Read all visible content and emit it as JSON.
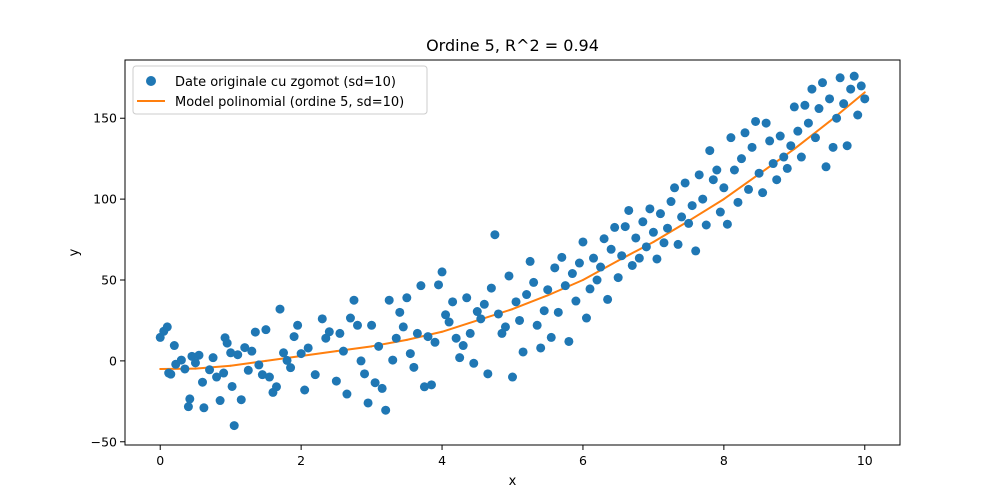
{
  "chart_data": {
    "type": "scatter",
    "title": "Ordine 5, R^2 = 0.94",
    "xlabel": "x",
    "ylabel": "y",
    "xlim": [
      -0.5,
      10.5
    ],
    "ylim": [
      -52,
      186
    ],
    "xticks": [
      0,
      2,
      4,
      6,
      8,
      10
    ],
    "yticks": [
      -50,
      0,
      50,
      100,
      150
    ],
    "grid": false,
    "legend_position": "top-left",
    "colors": {
      "scatter": "#1f77b4",
      "model": "#ff7f0e"
    },
    "series": [
      {
        "name": "Date originale cu zgomot (sd=10)",
        "kind": "scatter",
        "points": [
          [
            0.0,
            14.5
          ],
          [
            0.05,
            18.3
          ],
          [
            0.1,
            21.0
          ],
          [
            0.12,
            -7.5
          ],
          [
            0.15,
            -8.2
          ],
          [
            0.2,
            9.5
          ],
          [
            0.22,
            -2.1
          ],
          [
            0.3,
            0.5
          ],
          [
            0.35,
            -5.0
          ],
          [
            0.4,
            -28.3
          ],
          [
            0.42,
            -23.5
          ],
          [
            0.45,
            2.8
          ],
          [
            0.5,
            -1.2
          ],
          [
            0.55,
            3.5
          ],
          [
            0.6,
            -13.2
          ],
          [
            0.62,
            -29.0
          ],
          [
            0.7,
            -5.5
          ],
          [
            0.75,
            2.0
          ],
          [
            0.8,
            -10.0
          ],
          [
            0.85,
            -24.5
          ],
          [
            0.9,
            -7.5
          ],
          [
            0.92,
            14.3
          ],
          [
            0.95,
            11.0
          ],
          [
            1.0,
            5.0
          ],
          [
            1.02,
            -15.8
          ],
          [
            1.05,
            -40.0
          ],
          [
            1.1,
            3.8
          ],
          [
            1.15,
            -24.0
          ],
          [
            1.2,
            8.2
          ],
          [
            1.25,
            -5.8
          ],
          [
            1.3,
            6.0
          ],
          [
            1.35,
            17.8
          ],
          [
            1.4,
            -2.5
          ],
          [
            1.45,
            -8.5
          ],
          [
            1.5,
            19.3
          ],
          [
            1.55,
            -10.0
          ],
          [
            1.6,
            -19.5
          ],
          [
            1.65,
            -16.0
          ],
          [
            1.7,
            32.0
          ],
          [
            1.75,
            5.0
          ],
          [
            1.8,
            0.3
          ],
          [
            1.85,
            -4.2
          ],
          [
            1.9,
            15.0
          ],
          [
            1.95,
            22.0
          ],
          [
            2.0,
            4.5
          ],
          [
            2.05,
            -18.0
          ],
          [
            2.1,
            8.0
          ],
          [
            2.2,
            -8.5
          ],
          [
            2.3,
            26.0
          ],
          [
            2.35,
            14.0
          ],
          [
            2.4,
            18.0
          ],
          [
            2.5,
            -12.5
          ],
          [
            2.55,
            17.0
          ],
          [
            2.6,
            6.0
          ],
          [
            2.65,
            -20.5
          ],
          [
            2.7,
            26.5
          ],
          [
            2.75,
            37.5
          ],
          [
            2.8,
            22.0
          ],
          [
            2.85,
            0.0
          ],
          [
            2.9,
            -8.0
          ],
          [
            2.95,
            -26.0
          ],
          [
            3.0,
            22.0
          ],
          [
            3.05,
            -13.5
          ],
          [
            3.1,
            9.0
          ],
          [
            3.15,
            -17.0
          ],
          [
            3.2,
            -30.5
          ],
          [
            3.25,
            37.5
          ],
          [
            3.3,
            0.5
          ],
          [
            3.35,
            14.0
          ],
          [
            3.4,
            30.0
          ],
          [
            3.45,
            21.0
          ],
          [
            3.5,
            39.0
          ],
          [
            3.55,
            4.5
          ],
          [
            3.6,
            -4.0
          ],
          [
            3.65,
            17.0
          ],
          [
            3.7,
            46.5
          ],
          [
            3.75,
            -16.0
          ],
          [
            3.8,
            15.0
          ],
          [
            3.85,
            -14.8
          ],
          [
            3.9,
            11.5
          ],
          [
            3.95,
            47.0
          ],
          [
            4.0,
            55.0
          ],
          [
            4.05,
            28.5
          ],
          [
            4.1,
            24.0
          ],
          [
            4.15,
            36.5
          ],
          [
            4.2,
            14.0
          ],
          [
            4.25,
            2.0
          ],
          [
            4.3,
            9.5
          ],
          [
            4.35,
            39.0
          ],
          [
            4.4,
            17.0
          ],
          [
            4.45,
            -1.5
          ],
          [
            4.5,
            30.5
          ],
          [
            4.55,
            26.0
          ],
          [
            4.6,
            35.0
          ],
          [
            4.65,
            -8.0
          ],
          [
            4.7,
            45.0
          ],
          [
            4.75,
            78.0
          ],
          [
            4.8,
            29.0
          ],
          [
            4.85,
            17.0
          ],
          [
            4.9,
            21.0
          ],
          [
            4.95,
            52.5
          ],
          [
            5.0,
            -10.0
          ],
          [
            5.05,
            36.5
          ],
          [
            5.1,
            25.0
          ],
          [
            5.15,
            5.5
          ],
          [
            5.2,
            41.0
          ],
          [
            5.25,
            61.5
          ],
          [
            5.3,
            48.5
          ],
          [
            5.35,
            22.0
          ],
          [
            5.4,
            8.0
          ],
          [
            5.45,
            31.0
          ],
          [
            5.5,
            44.0
          ],
          [
            5.55,
            14.5
          ],
          [
            5.6,
            57.5
          ],
          [
            5.65,
            30.0
          ],
          [
            5.7,
            64.0
          ],
          [
            5.75,
            46.5
          ],
          [
            5.8,
            12.0
          ],
          [
            5.85,
            54.0
          ],
          [
            5.9,
            37.0
          ],
          [
            5.95,
            60.5
          ],
          [
            6.0,
            73.5
          ],
          [
            6.05,
            26.5
          ],
          [
            6.1,
            44.5
          ],
          [
            6.15,
            63.5
          ],
          [
            6.2,
            50.0
          ],
          [
            6.25,
            58.0
          ],
          [
            6.3,
            75.5
          ],
          [
            6.35,
            38.0
          ],
          [
            6.4,
            69.0
          ],
          [
            6.45,
            82.5
          ],
          [
            6.5,
            51.5
          ],
          [
            6.55,
            65.0
          ],
          [
            6.6,
            83.0
          ],
          [
            6.65,
            93.0
          ],
          [
            6.7,
            59.0
          ],
          [
            6.75,
            76.0
          ],
          [
            6.8,
            63.5
          ],
          [
            6.85,
            86.0
          ],
          [
            6.9,
            70.5
          ],
          [
            6.95,
            94.0
          ],
          [
            7.0,
            79.5
          ],
          [
            7.05,
            63.0
          ],
          [
            7.1,
            91.0
          ],
          [
            7.15,
            73.0
          ],
          [
            7.2,
            82.0
          ],
          [
            7.25,
            98.5
          ],
          [
            7.3,
            107.0
          ],
          [
            7.35,
            72.0
          ],
          [
            7.4,
            89.0
          ],
          [
            7.45,
            110.0
          ],
          [
            7.5,
            85.0
          ],
          [
            7.55,
            96.0
          ],
          [
            7.6,
            68.0
          ],
          [
            7.65,
            115.0
          ],
          [
            7.7,
            100.0
          ],
          [
            7.75,
            84.0
          ],
          [
            7.8,
            130.0
          ],
          [
            7.85,
            112.0
          ],
          [
            7.9,
            118.0
          ],
          [
            7.95,
            92.0
          ],
          [
            8.0,
            107.0
          ],
          [
            8.05,
            84.5
          ],
          [
            8.1,
            138.0
          ],
          [
            8.15,
            118.0
          ],
          [
            8.2,
            98.0
          ],
          [
            8.25,
            125.0
          ],
          [
            8.3,
            141.0
          ],
          [
            8.35,
            106.0
          ],
          [
            8.4,
            132.0
          ],
          [
            8.45,
            148.0
          ],
          [
            8.5,
            116.0
          ],
          [
            8.55,
            104.0
          ],
          [
            8.6,
            147.0
          ],
          [
            8.65,
            136.0
          ],
          [
            8.7,
            122.0
          ],
          [
            8.75,
            112.0
          ],
          [
            8.8,
            139.0
          ],
          [
            8.85,
            126.0
          ],
          [
            8.9,
            119.0
          ],
          [
            8.95,
            133.0
          ],
          [
            9.0,
            157.0
          ],
          [
            9.05,
            142.0
          ],
          [
            9.1,
            126.0
          ],
          [
            9.15,
            158.0
          ],
          [
            9.2,
            147.0
          ],
          [
            9.25,
            168.0
          ],
          [
            9.3,
            138.0
          ],
          [
            9.35,
            156.0
          ],
          [
            9.4,
            172.0
          ],
          [
            9.45,
            120.0
          ],
          [
            9.5,
            162.0
          ],
          [
            9.55,
            132.0
          ],
          [
            9.6,
            150.0
          ],
          [
            9.65,
            175.0
          ],
          [
            9.7,
            159.0
          ],
          [
            9.75,
            133.0
          ],
          [
            9.8,
            168.0
          ],
          [
            9.85,
            176.0
          ],
          [
            9.9,
            152.0
          ],
          [
            9.95,
            170.0
          ],
          [
            10.0,
            162.0
          ]
        ]
      },
      {
        "name": "Model polinomial (ordine 5, sd=10)",
        "kind": "line",
        "x": [
          0,
          0.5,
          1,
          1.5,
          2,
          2.5,
          3,
          3.5,
          4,
          4.5,
          5,
          5.5,
          6,
          6.5,
          7,
          7.5,
          8,
          8.5,
          9,
          9.5,
          10
        ],
        "y": [
          -5.0,
          -4.8,
          -3.0,
          0.0,
          3.0,
          6.0,
          9.0,
          13.0,
          18.0,
          25.0,
          32.0,
          40.5,
          50.0,
          62.0,
          73.5,
          86.5,
          100.0,
          115.5,
          131.0,
          148.0,
          166.0
        ]
      }
    ]
  }
}
